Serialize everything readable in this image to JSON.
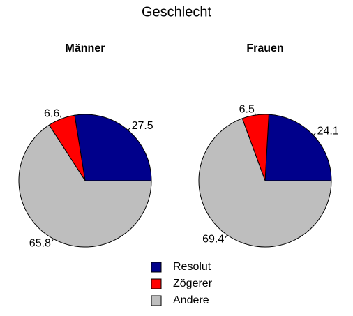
{
  "title": "Geschlecht",
  "chart_data": [
    {
      "type": "pie",
      "title": "Männer",
      "categories": [
        "Resolut",
        "Zögerer",
        "Andere"
      ],
      "values": [
        27.5,
        6.6,
        65.8
      ],
      "colors": [
        "#00008b",
        "#ff0000",
        "#bebebe"
      ]
    },
    {
      "type": "pie",
      "title": "Frauen",
      "categories": [
        "Resolut",
        "Zögerer",
        "Andere"
      ],
      "values": [
        24.1,
        6.5,
        69.4
      ],
      "colors": [
        "#00008b",
        "#ff0000",
        "#bebebe"
      ]
    }
  ]
}
